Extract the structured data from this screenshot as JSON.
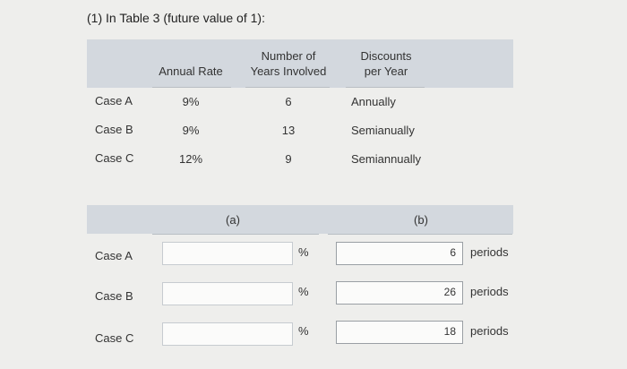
{
  "title": "(1) In Table 3 (future value of 1):",
  "table1": {
    "headers": {
      "annual_rate": "Annual Rate",
      "years_line1": "Number of",
      "years_line2": "Years Involved",
      "discounts_line1": "Discounts",
      "discounts_line2": "per Year"
    },
    "rows": [
      {
        "label": "Case A",
        "rate": "9%",
        "years": "6",
        "discounts": "Annually"
      },
      {
        "label": "Case B",
        "rate": "9%",
        "years": "13",
        "discounts": "Semianually"
      },
      {
        "label": "Case C",
        "rate": "12%",
        "years": "9",
        "discounts": "Semiannually"
      }
    ]
  },
  "table2": {
    "col_a_label": "(a)",
    "col_b_label": "(b)",
    "rows": [
      {
        "label": "Case A",
        "rate_value": "",
        "rate_unit": "%",
        "periods_value": "6",
        "periods_unit": "periods"
      },
      {
        "label": "Case B",
        "rate_value": "",
        "rate_unit": "%",
        "periods_value": "26",
        "periods_unit": "periods"
      },
      {
        "label": "Case C",
        "rate_value": "",
        "rate_unit": "%",
        "periods_value": "18",
        "periods_unit": "periods"
      }
    ]
  }
}
